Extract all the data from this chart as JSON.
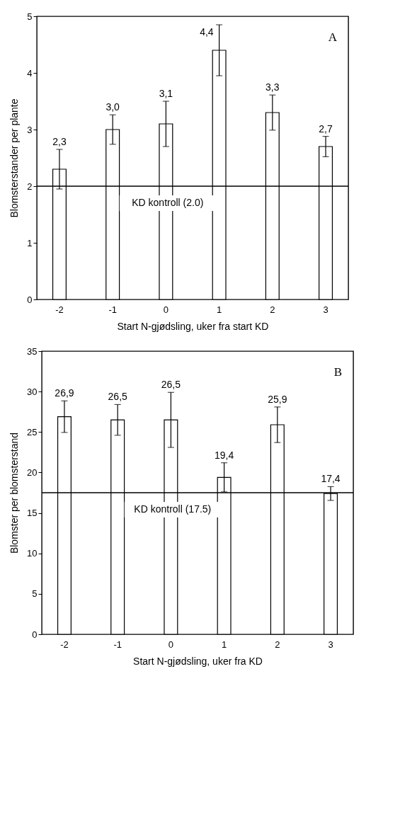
{
  "chart_data": [
    {
      "type": "bar",
      "xlabel": "Start N-gjødsling, uker fra start KD",
      "ylabel": "Blomsterstander per plante",
      "annotations": [
        "A"
      ],
      "categories": [
        "-2",
        "-1",
        "0",
        "1",
        "2",
        "3"
      ],
      "values": [
        2.3,
        3.0,
        3.1,
        4.4,
        3.3,
        2.7
      ],
      "color": "#ffffff",
      "errors": [
        0.35,
        0.26,
        0.4,
        0.45,
        0.31,
        0.18
      ],
      "value_labels": [
        "2,3",
        "3,0",
        "3,1",
        "4,4",
        "3,3",
        "2,7"
      ],
      "ylim": [
        0,
        5
      ],
      "yticks": [
        0,
        1,
        2,
        3,
        4,
        5
      ],
      "grid": false,
      "ref_lines": [
        {
          "axis": "y",
          "value": 2.0,
          "label": "KD kontroll (2.0)",
          "color": "#000000"
        }
      ]
    },
    {
      "type": "bar",
      "xlabel": "Start N-gjødsling, uker fra KD",
      "ylabel": "Blomster per blomsterstand",
      "annotations": [
        "B"
      ],
      "categories": [
        "-2",
        "-1",
        "0",
        "1",
        "2",
        "3"
      ],
      "values": [
        26.9,
        26.5,
        26.5,
        19.4,
        25.9,
        17.4
      ],
      "color": "#ffffff",
      "errors": [
        1.95,
        1.9,
        3.4,
        1.8,
        2.2,
        0.85
      ],
      "value_labels": [
        "26,9",
        "26,5",
        "26,5",
        "19,4",
        "25,9",
        "17,4"
      ],
      "ylim": [
        0,
        35
      ],
      "yticks": [
        0,
        5,
        10,
        15,
        20,
        25,
        30,
        35
      ],
      "grid": false,
      "ref_lines": [
        {
          "axis": "y",
          "value": 17.5,
          "label": "KD kontroll (17.5)",
          "color": "#000000"
        }
      ]
    }
  ]
}
